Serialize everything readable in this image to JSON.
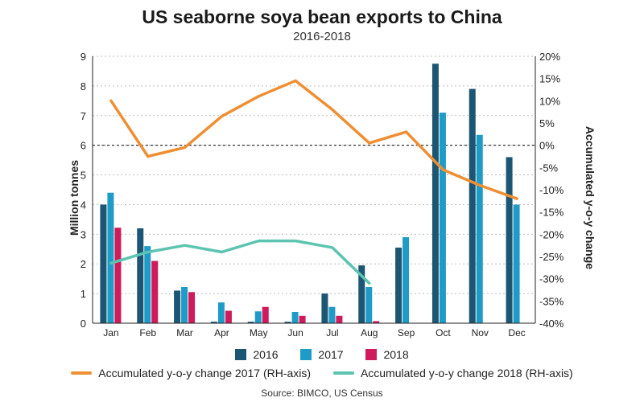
{
  "chart_data": {
    "type": "bar",
    "title": "US seaborne soya bean exports to China",
    "subtitle": "2016-2018",
    "ylabel": "Million tonnes",
    "ylabel_right": "Accumulated y-o-y change",
    "ylim": [
      0,
      9
    ],
    "ylim_right": [
      -40,
      20
    ],
    "yticks": [
      "0",
      "1",
      "2",
      "3",
      "4",
      "5",
      "6",
      "7",
      "8",
      "9"
    ],
    "yticks_right": [
      "20%",
      "15%",
      "10%",
      "5%",
      "0%",
      "-5%",
      "-10%",
      "-15%",
      "-20%",
      "-25%",
      "-30%",
      "-35%",
      "-40%"
    ],
    "categories": [
      "Jan",
      "Feb",
      "Mar",
      "Apr",
      "May",
      "Jun",
      "Jul",
      "Aug",
      "Sep",
      "Oct",
      "Nov",
      "Dec"
    ],
    "series": [
      {
        "name": "2016",
        "color": "#1d5673",
        "values": [
          4.0,
          3.2,
          1.1,
          0.05,
          0.05,
          0.05,
          1.0,
          1.95,
          2.55,
          8.75,
          7.9,
          5.6
        ]
      },
      {
        "name": "2017",
        "color": "#1f9bc8",
        "values": [
          4.4,
          2.6,
          1.22,
          0.7,
          0.4,
          0.38,
          0.55,
          1.22,
          2.9,
          7.1,
          6.35,
          4.0
        ]
      },
      {
        "name": "2018",
        "color": "#cf1a5c",
        "values": [
          3.22,
          2.1,
          1.05,
          0.42,
          0.55,
          0.25,
          0.25,
          0.07,
          null,
          null,
          null,
          null
        ]
      }
    ],
    "lines": [
      {
        "name": "Accumulated y-o-y change 2017 (RH-axis)",
        "color": "#ee8f33",
        "axis": "right",
        "values": [
          10,
          -2.5,
          -0.5,
          6.5,
          11,
          14.5,
          8,
          0.5,
          3,
          -5.5,
          -9,
          -12
        ]
      },
      {
        "name": "Accumulated y-o-y change 2018 (RH-axis)",
        "color": "#5cc4b0",
        "axis": "right",
        "values": [
          -26.5,
          -24,
          -22.5,
          -24,
          -21.5,
          -21.5,
          -23,
          -31,
          null,
          null,
          null,
          null
        ]
      }
    ],
    "reference_line": {
      "axis": "right",
      "value": 0,
      "style": "dotted"
    },
    "grid": true,
    "legend_position": "bottom",
    "source": "Source: BIMCO, US Census"
  }
}
